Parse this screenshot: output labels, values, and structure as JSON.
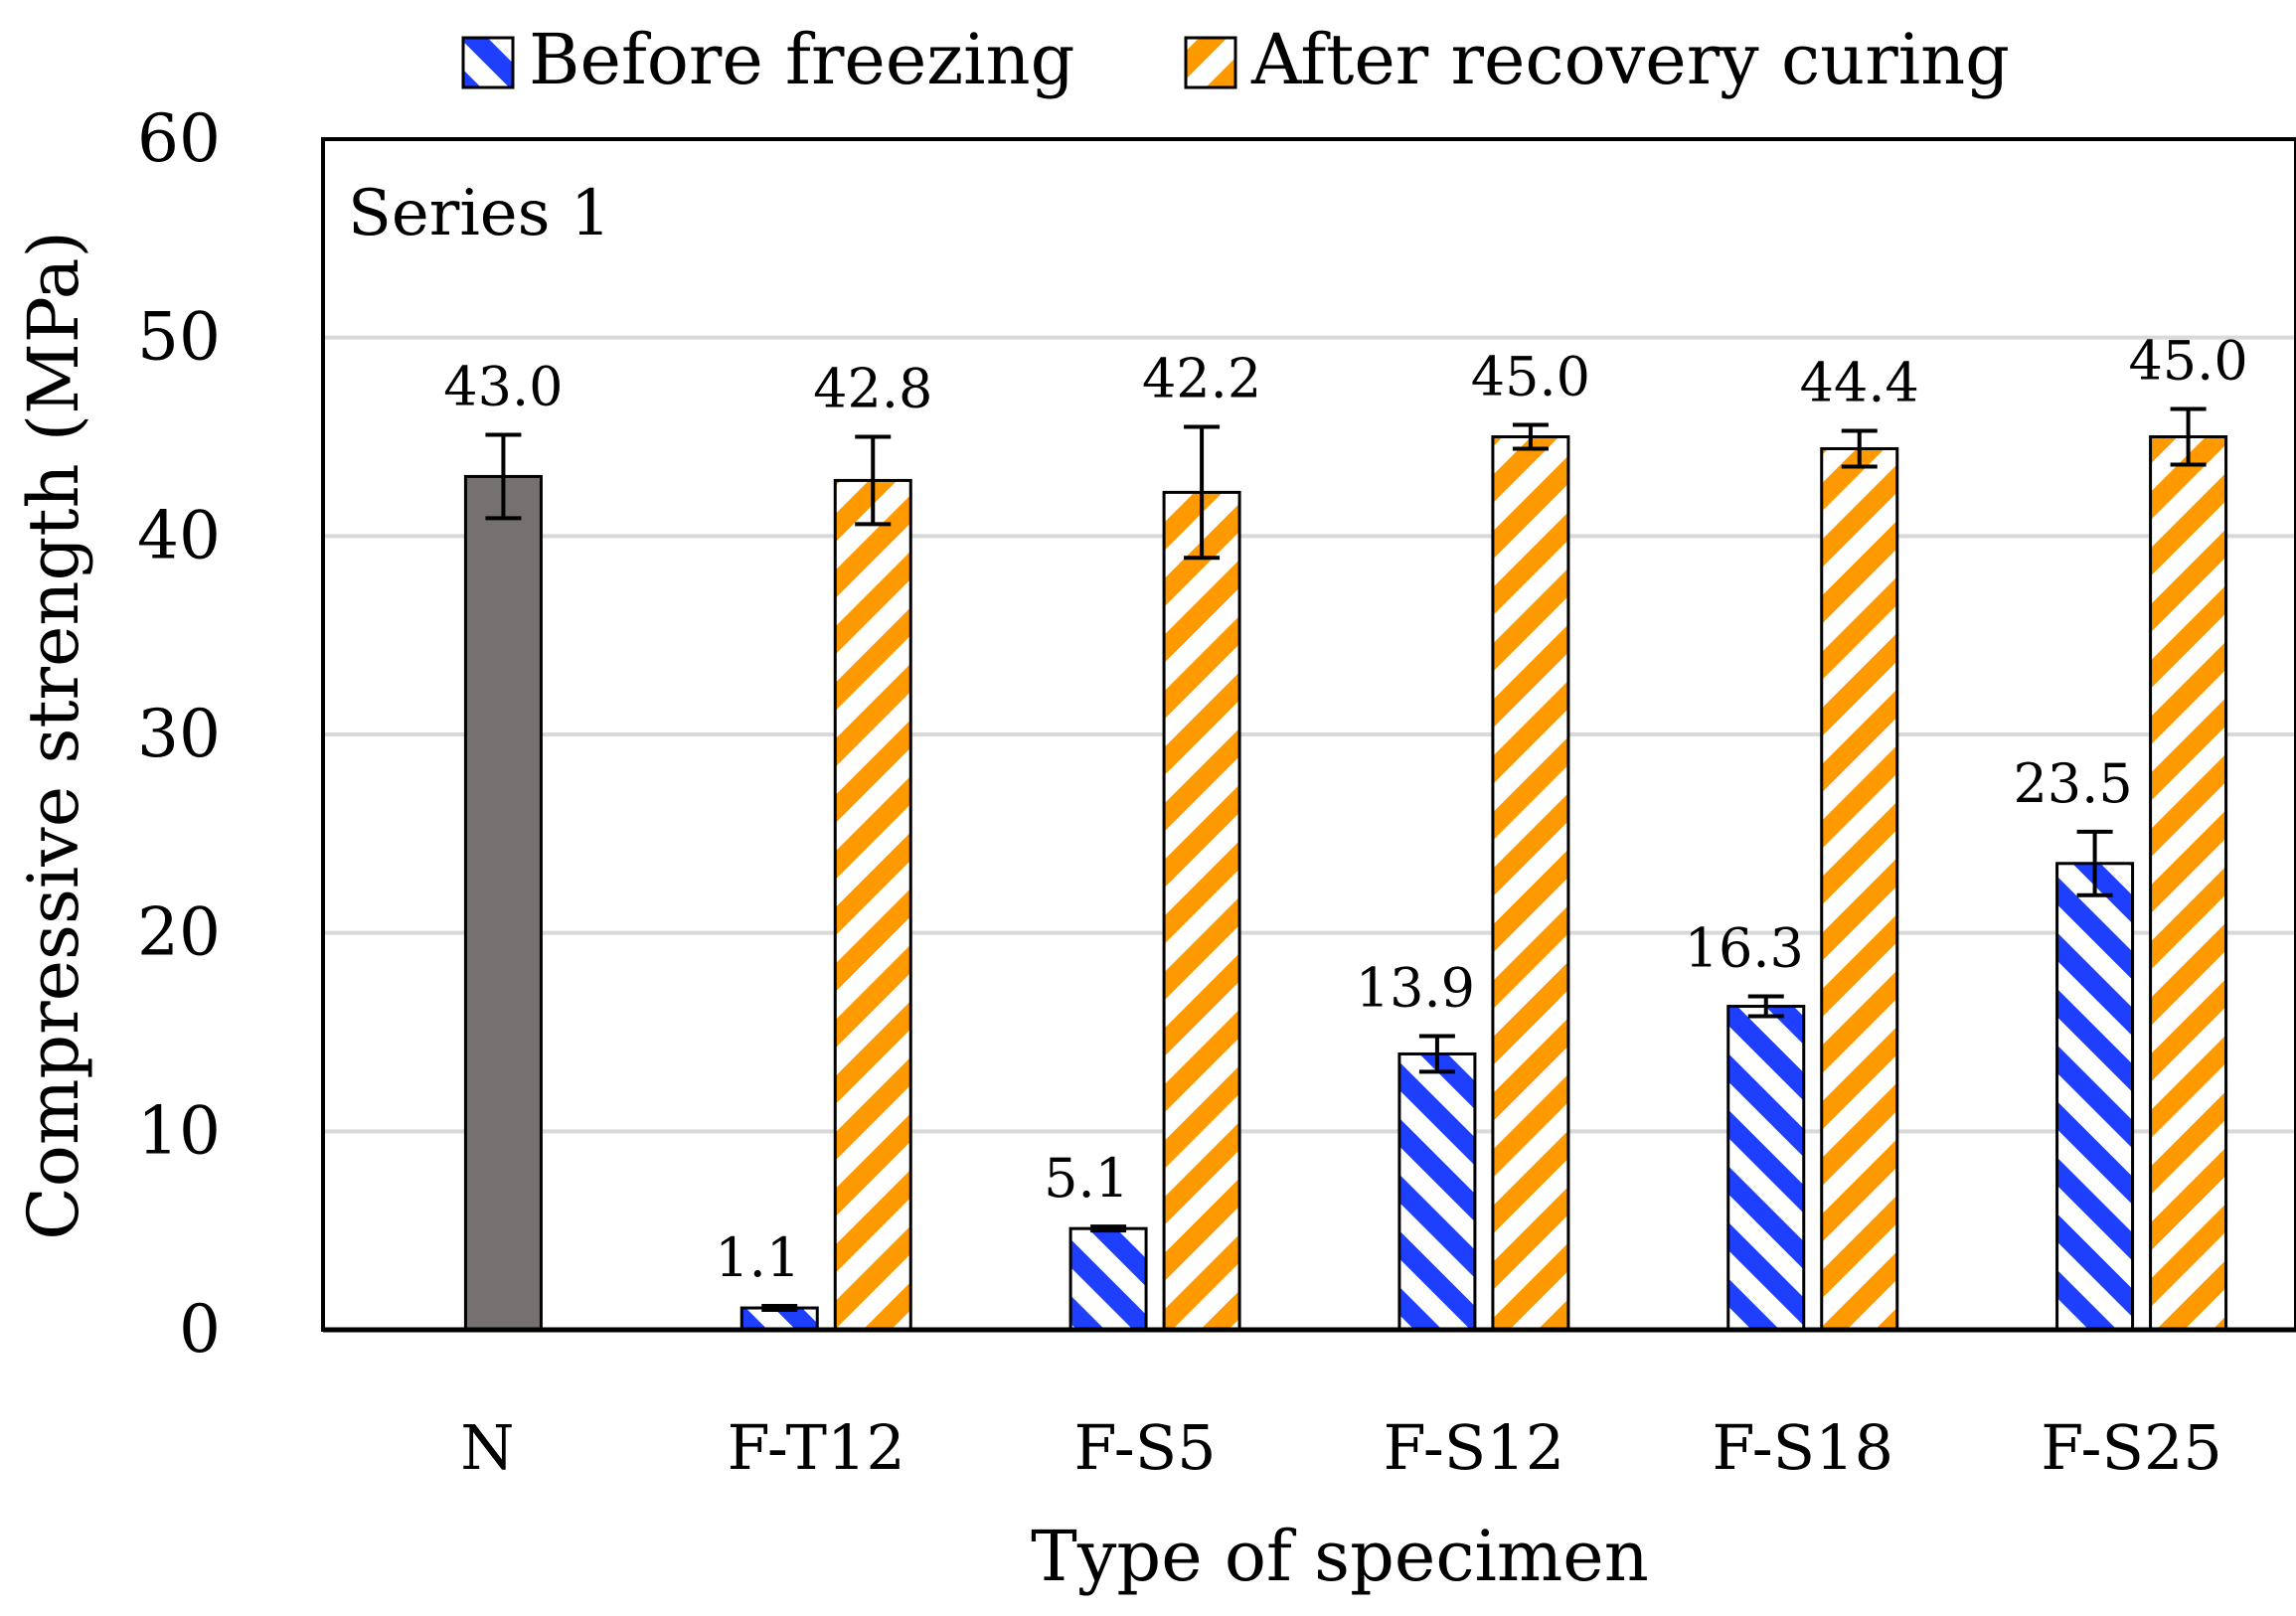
{
  "chart_data": {
    "type": "bar",
    "title": "",
    "panel_label": "Series 1",
    "xlabel": "Type of specimen",
    "ylabel": "Compressive strength (MPa)",
    "ylim": [
      0,
      60
    ],
    "yticks": [
      0,
      10,
      20,
      30,
      40,
      50,
      60
    ],
    "grid": true,
    "legend_position": "top",
    "categories": [
      "N",
      "F-T12",
      "F-S5",
      "F-S12",
      "F-S18",
      "F-S25"
    ],
    "reference": {
      "name": "N",
      "value": 43.0,
      "label": "43.0",
      "error": 2.1,
      "color": "#767171"
    },
    "series": [
      {
        "name": "Before freezing",
        "color": "#1f3fff",
        "values": [
          null,
          1.1,
          5.1,
          13.9,
          16.3,
          23.5
        ],
        "labels": [
          "",
          "1.1",
          "5.1",
          "13.9",
          "16.3",
          "23.5"
        ],
        "errors": [
          null,
          0.1,
          0.1,
          0.9,
          0.5,
          1.6
        ]
      },
      {
        "name": "After recovery curing",
        "color": "#ff9900",
        "values": [
          null,
          42.8,
          42.2,
          45.0,
          44.4,
          45.0
        ],
        "labels": [
          "",
          "42.8",
          "42.2",
          "45.0",
          "44.4",
          "45.0"
        ],
        "errors": [
          null,
          2.2,
          3.3,
          0.6,
          0.9,
          1.4
        ]
      }
    ]
  }
}
